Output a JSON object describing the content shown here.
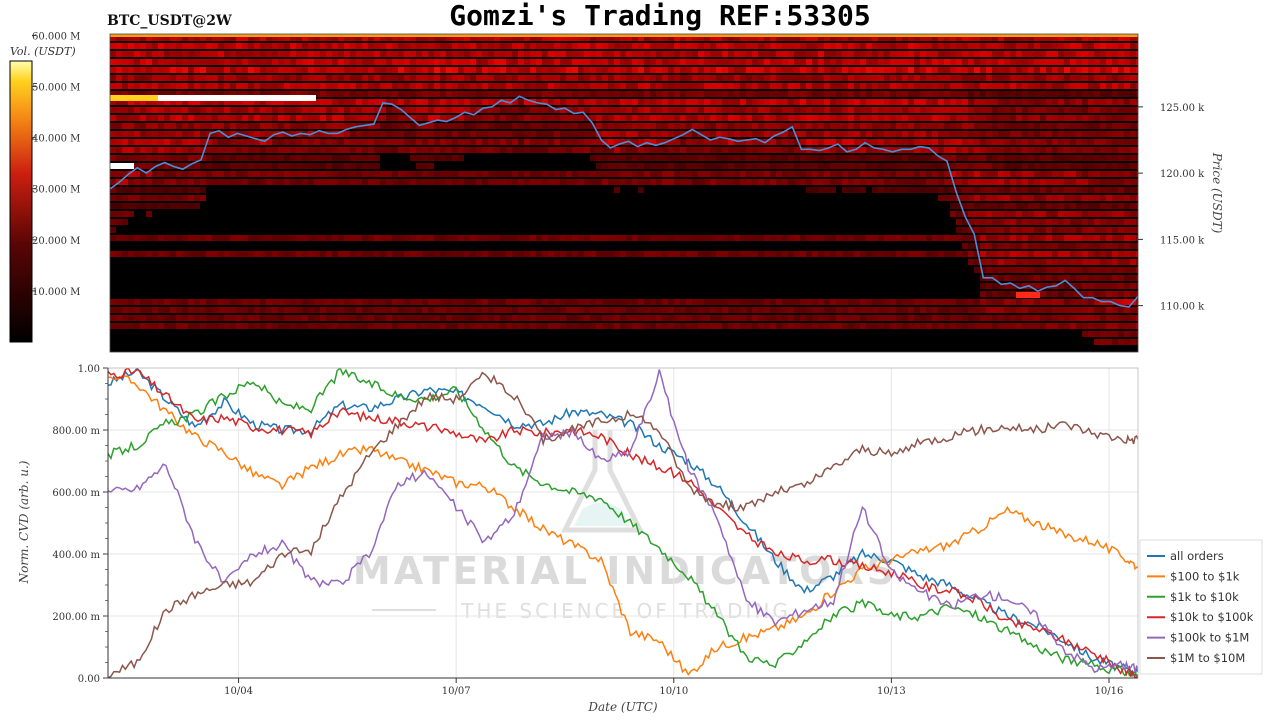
{
  "header": {
    "title": "Gomzi's Trading REF:53305",
    "symbol": "BTC_USDT@2W"
  },
  "colors": {
    "heat_low": "#000000",
    "heat_mid": "#cc1f10",
    "heat_high": "#ffd21f",
    "heat_max": "#ffffff",
    "price_line": "#4a90d9",
    "series": [
      "#1f77b4",
      "#ff7f0e",
      "#2ca02c",
      "#d62728",
      "#9467bd",
      "#8c564b"
    ]
  },
  "watermark": {
    "line1": "MATERIAL INDICATORS",
    "line2": "THE SCIENCE OF TRADING",
    "icon": "flask-icon"
  },
  "chart_data": [
    {
      "type": "heatmap",
      "title": "Gomzi's Trading REF:53305",
      "subtitle": "BTC_USDT@2W",
      "ylabel": "Price (USDT)",
      "ylim": [
        106500,
        130500
      ],
      "yticks": [
        110000,
        115000,
        120000,
        125000
      ],
      "ytick_labels": [
        "110.00 k",
        "115.00 k",
        "120.00 k",
        "125.00 k"
      ],
      "colorbar": {
        "label": "Vol. (USDT)",
        "range": [
          0,
          55000000
        ],
        "ticks": [
          10000000,
          20000000,
          30000000,
          40000000,
          50000000,
          60000000
        ],
        "tick_labels": [
          "10.000 M",
          "20.000 M",
          "30.000 M",
          "40.000 M",
          "50.000 M",
          "60.000 M"
        ]
      },
      "price_line": {
        "x": [
          0,
          3,
          6,
          9,
          12,
          15,
          18,
          21,
          24,
          27,
          30,
          33,
          36,
          39,
          42,
          45,
          48,
          51,
          54,
          57,
          60,
          63,
          66,
          69,
          72,
          75,
          78,
          81,
          84,
          87,
          90,
          93,
          96,
          99,
          102,
          105,
          108,
          111,
          114,
          117,
          120,
          123,
          126,
          129,
          132,
          135,
          138,
          141,
          144,
          147,
          150,
          153,
          156,
          159,
          162,
          165,
          168,
          171,
          174,
          177,
          180,
          183,
          186,
          189,
          192,
          195,
          198,
          201,
          204,
          207,
          210,
          213,
          216,
          219,
          222,
          225,
          228,
          231,
          234,
          237,
          240,
          243,
          246,
          249,
          252,
          255,
          258,
          261,
          264,
          267,
          270,
          273,
          276,
          279,
          282,
          285,
          288,
          291,
          294,
          297,
          300,
          303,
          306,
          309,
          312,
          315,
          318,
          321,
          324,
          327,
          330,
          333,
          336,
          339
        ],
        "y": [
          118800,
          119300,
          119900,
          120400,
          120000,
          120500,
          120800,
          120500,
          120300,
          120700,
          121000,
          123000,
          123200,
          122700,
          123000,
          122800,
          122600,
          122400,
          122900,
          123100,
          122800,
          123000,
          122900,
          123200,
          123000,
          123000,
          123300,
          123500,
          123600,
          123700,
          125300,
          125200,
          124800,
          124200,
          123600,
          123800,
          124000,
          123900,
          124200,
          124600,
          124400,
          124900,
          125000,
          125500,
          125300,
          125800,
          125500,
          125300,
          125200,
          124800,
          124900,
          124500,
          124600,
          123800,
          122500,
          121900,
          122200,
          122400,
          122000,
          122300,
          122100,
          122300,
          122600,
          122900,
          123300,
          122900,
          122500,
          122700,
          122600,
          122400,
          122500,
          122600,
          122300,
          122800,
          123100,
          123500,
          121800,
          121800,
          121700,
          121900,
          122200,
          121600,
          121800,
          122300,
          121900,
          121800,
          121600,
          121800,
          121800,
          122000,
          121900,
          121300,
          120900,
          118600,
          116700,
          115400,
          112100,
          112100,
          111600,
          111700,
          111300,
          111500,
          111100,
          111400,
          111500,
          111900,
          111300,
          110600,
          110600,
          110300,
          110300,
          110000,
          109900,
          110700
        ]
      }
    },
    {
      "type": "line",
      "xlabel": "Date (UTC)",
      "ylabel": "Norm. CVD (arb. u.)",
      "xlim": [
        0,
        14.2
      ],
      "ylim": [
        0,
        1
      ],
      "x_tick_positions": [
        1.8,
        4.8,
        7.8,
        10.8,
        13.8
      ],
      "x_tick_labels": [
        "10/04",
        "10/07",
        "10/10",
        "10/13",
        "10/16"
      ],
      "yticks": [
        0,
        0.2,
        0.4,
        0.6,
        0.8,
        1.0
      ],
      "ytick_labels": [
        "0.00",
        "200.00 m",
        "400.00 m",
        "600.00 m",
        "800.00 m",
        "1.00"
      ],
      "legend": "right",
      "grid": true,
      "x": [
        0,
        0.4,
        0.8,
        1.2,
        1.6,
        2.0,
        2.4,
        2.8,
        3.2,
        3.6,
        4.0,
        4.4,
        4.8,
        5.2,
        5.6,
        6.0,
        6.4,
        6.8,
        7.2,
        7.6,
        8.0,
        8.4,
        8.8,
        9.2,
        9.6,
        10.0,
        10.4,
        10.8,
        11.2,
        11.6,
        12.0,
        12.4,
        12.8,
        13.2,
        13.6,
        14.0,
        14.2
      ],
      "series": [
        {
          "name": "all orders",
          "values": [
            0.95,
            0.99,
            0.9,
            0.81,
            0.89,
            0.82,
            0.8,
            0.8,
            0.88,
            0.87,
            0.9,
            0.93,
            0.92,
            0.88,
            0.82,
            0.82,
            0.86,
            0.85,
            0.82,
            0.75,
            0.7,
            0.62,
            0.5,
            0.38,
            0.28,
            0.33,
            0.4,
            0.38,
            0.33,
            0.3,
            0.25,
            0.2,
            0.17,
            0.12,
            0.06,
            0.03,
            0.02
          ]
        },
        {
          "name": "$100 to $1k",
          "values": [
            0.98,
            0.95,
            0.86,
            0.78,
            0.73,
            0.66,
            0.62,
            0.68,
            0.72,
            0.74,
            0.7,
            0.67,
            0.63,
            0.62,
            0.55,
            0.48,
            0.43,
            0.38,
            0.15,
            0.12,
            0.01,
            0.1,
            0.13,
            0.16,
            0.2,
            0.28,
            0.35,
            0.38,
            0.41,
            0.43,
            0.48,
            0.54,
            0.5,
            0.46,
            0.44,
            0.39,
            0.36
          ]
        },
        {
          "name": "$1k to $10k",
          "values": [
            0.72,
            0.75,
            0.82,
            0.85,
            0.91,
            0.96,
            0.88,
            0.87,
            0.99,
            0.95,
            0.91,
            0.9,
            0.93,
            0.8,
            0.68,
            0.63,
            0.6,
            0.58,
            0.5,
            0.42,
            0.33,
            0.2,
            0.07,
            0.04,
            0.12,
            0.2,
            0.24,
            0.2,
            0.2,
            0.23,
            0.2,
            0.15,
            0.1,
            0.06,
            0.04,
            0.02,
            0.01
          ]
        },
        {
          "name": "$10k to $100k",
          "values": [
            0.98,
            0.99,
            0.91,
            0.83,
            0.84,
            0.81,
            0.8,
            0.79,
            0.86,
            0.84,
            0.83,
            0.81,
            0.79,
            0.76,
            0.8,
            0.79,
            0.8,
            0.78,
            0.72,
            0.68,
            0.64,
            0.55,
            0.46,
            0.4,
            0.38,
            0.38,
            0.36,
            0.34,
            0.3,
            0.28,
            0.25,
            0.18,
            0.16,
            0.12,
            0.08,
            0.02,
            0.01
          ]
        },
        {
          "name": "$100k to $1M",
          "values": [
            0.6,
            0.61,
            0.69,
            0.45,
            0.3,
            0.4,
            0.43,
            0.31,
            0.3,
            0.4,
            0.63,
            0.66,
            0.55,
            0.44,
            0.53,
            0.78,
            0.79,
            0.7,
            0.73,
            0.98,
            0.68,
            0.52,
            0.25,
            0.18,
            0.22,
            0.25,
            0.55,
            0.34,
            0.28,
            0.23,
            0.27,
            0.26,
            0.2,
            0.09,
            0.03,
            0.04,
            0.03
          ]
        },
        {
          "name": "$1M to $10M",
          "values": [
            0.01,
            0.05,
            0.22,
            0.27,
            0.3,
            0.31,
            0.4,
            0.41,
            0.58,
            0.72,
            0.82,
            0.91,
            0.9,
            0.98,
            0.91,
            0.77,
            0.8,
            0.83,
            0.85,
            0.8,
            0.62,
            0.56,
            0.55,
            0.6,
            0.62,
            0.68,
            0.74,
            0.72,
            0.76,
            0.78,
            0.8,
            0.81,
            0.8,
            0.82,
            0.79,
            0.77,
            0.77
          ]
        }
      ]
    }
  ]
}
